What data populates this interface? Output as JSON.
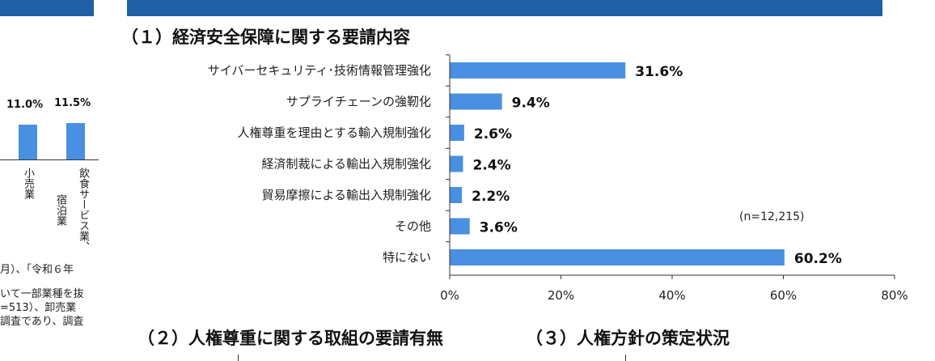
{
  "headings": {
    "section1": "（１）経済安全保障に関する要請内容",
    "section2": "（２）人権尊重に関する取組の要請有無",
    "section3": "（３）人権方針の策定状況"
  },
  "left_panel": {
    "values": [
      "11.0%",
      "11.5%"
    ],
    "category_retail": "小売業",
    "category_lodging": "宿泊業",
    "category_food": "飲食サービス業、",
    "notes": [
      "月）、「令和６年",
      "いて一部業種を抜",
      "=513）、卸売業",
      "調査であり、調査"
    ]
  },
  "colors": {
    "banner": "#1f5fa6",
    "bar": "#4a90e2"
  },
  "chart_data": {
    "type": "bar",
    "orientation": "horizontal",
    "categories": [
      "サイバーセキュリティ･技術情報管理強化",
      "サプライチェーンの強靭化",
      "人権尊重を理由とする輸入規制強化",
      "経済制裁による輸出入規制強化",
      "貿易摩擦による輸出入規制強化",
      "その他",
      "特にない"
    ],
    "values": [
      31.6,
      9.4,
      2.6,
      2.4,
      2.2,
      3.6,
      60.2
    ],
    "value_labels": [
      "31.6%",
      "9.4%",
      "2.6%",
      "2.4%",
      "2.2%",
      "3.6%",
      "60.2%"
    ],
    "xlim": [
      0,
      80
    ],
    "ticks": [
      0,
      20,
      40,
      60,
      80
    ],
    "tick_labels": [
      "0%",
      "20%",
      "40%",
      "60%",
      "80%"
    ],
    "annotation": "(n=12,215)",
    "grid": false
  }
}
